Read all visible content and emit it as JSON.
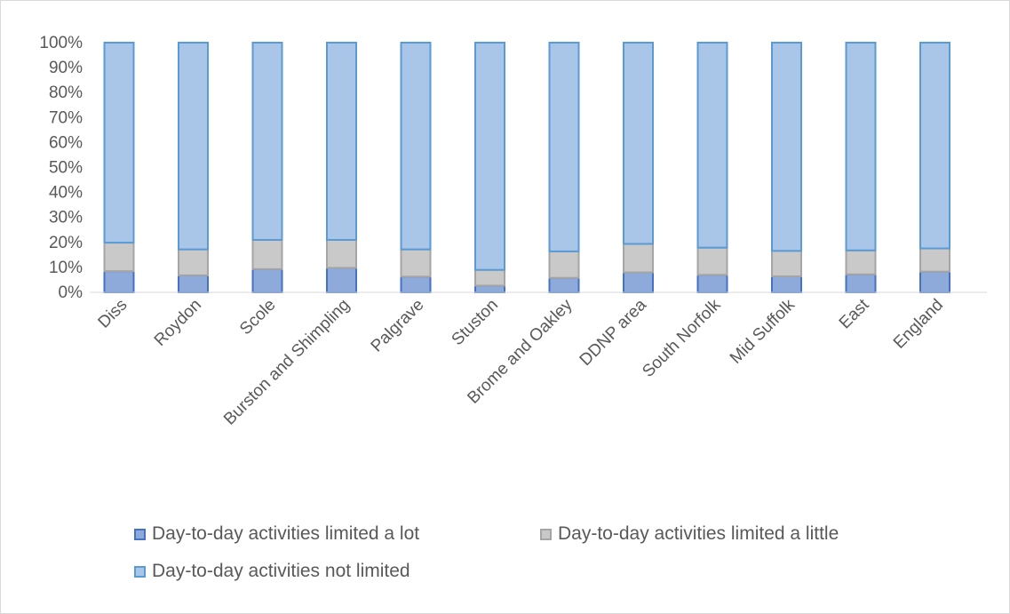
{
  "chart_data": {
    "type": "bar",
    "stacked": true,
    "percent_stacked": true,
    "title": "",
    "xlabel": "",
    "ylabel": "",
    "ylim": [
      0,
      100
    ],
    "y_ticks": [
      "0%",
      "10%",
      "20%",
      "30%",
      "40%",
      "50%",
      "60%",
      "70%",
      "80%",
      "90%",
      "100%"
    ],
    "grid": false,
    "legend_position": "bottom",
    "categories": [
      "Diss",
      "Roydon",
      "Scole",
      "Burston and Shimpling",
      "Palgrave",
      "Stuston",
      "Brome and Oakley",
      "DDNP area",
      "South Norfolk",
      "Mid Suffolk",
      "East",
      "England"
    ],
    "series": [
      {
        "name": "Day-to-day activities limited a lot",
        "color": "#4472c4",
        "fill": "#8eaadb",
        "values": [
          8.5,
          6.8,
          9.3,
          9.8,
          6.3,
          2.7,
          5.8,
          8.0,
          7.0,
          6.4,
          7.2,
          8.3
        ]
      },
      {
        "name": "Day-to-day activities limited a little",
        "color": "#a5a5a5",
        "fill": "#c9c9c9",
        "values": [
          11.4,
          10.4,
          11.7,
          11.2,
          10.9,
          6.3,
          10.6,
          11.4,
          10.9,
          10.2,
          9.6,
          9.3
        ]
      },
      {
        "name": "Day-to-day activities not limited",
        "color": "#5b9bd5",
        "fill": "#a9c5e8",
        "values": [
          80.1,
          82.8,
          79.0,
          79.0,
          82.8,
          91.0,
          83.6,
          80.6,
          82.1,
          83.4,
          83.2,
          82.4
        ]
      }
    ]
  }
}
